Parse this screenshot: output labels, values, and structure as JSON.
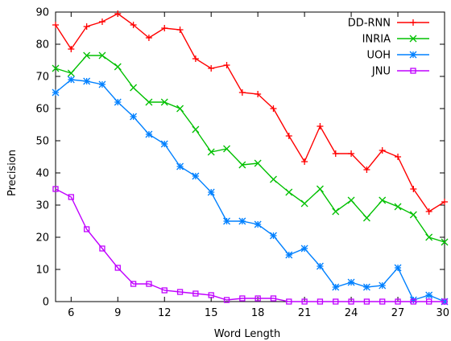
{
  "chart_data": {
    "type": "line",
    "xlabel": "Word Length",
    "ylabel": "Precision",
    "xlim": [
      5,
      30
    ],
    "ylim": [
      0,
      90
    ],
    "xticks": [
      6,
      9,
      12,
      15,
      18,
      21,
      24,
      27,
      30
    ],
    "yticks": [
      0,
      10,
      20,
      30,
      40,
      50,
      60,
      70,
      80,
      90
    ],
    "grid": false,
    "legend_position": "top-right",
    "x": [
      5,
      6,
      7,
      8,
      9,
      10,
      11,
      12,
      13,
      14,
      15,
      16,
      17,
      18,
      19,
      20,
      21,
      22,
      23,
      24,
      25,
      26,
      27,
      28,
      29,
      30
    ],
    "series": [
      {
        "name": "DD-RNN",
        "color": "#ff0000",
        "marker": "plus",
        "values": [
          86,
          78.5,
          85.5,
          87,
          89.5,
          86,
          82,
          85,
          84.5,
          75.5,
          72.5,
          73.5,
          65,
          64.5,
          60,
          51.5,
          43.5,
          54.5,
          46,
          46,
          41,
          47,
          45,
          35,
          28,
          31
        ]
      },
      {
        "name": "INRIA",
        "color": "#00c000",
        "marker": "cross",
        "values": [
          72.5,
          71,
          76.5,
          76.5,
          73,
          66.5,
          62,
          62,
          60,
          53.5,
          46.5,
          47.5,
          42.5,
          43,
          38,
          34,
          30.5,
          35,
          28,
          31.5,
          26,
          31.5,
          29.5,
          27,
          20,
          18.5
        ]
      },
      {
        "name": "UOH",
        "color": "#0080ff",
        "marker": "star",
        "values": [
          65,
          69,
          68.5,
          67.5,
          62,
          57.5,
          52,
          49,
          42,
          39,
          34,
          25,
          25,
          24,
          20.5,
          14.5,
          16.5,
          11,
          4.5,
          6,
          4.5,
          5,
          10.5,
          0.5,
          2,
          0
        ]
      },
      {
        "name": "JNU",
        "color": "#c000ff",
        "marker": "square",
        "values": [
          35,
          32.5,
          22.5,
          16.5,
          10.5,
          5.5,
          5.5,
          3.5,
          3,
          2.5,
          2,
          0.5,
          1,
          1,
          1,
          0,
          0,
          0,
          0,
          0,
          0,
          0,
          0,
          0,
          0,
          0
        ]
      }
    ]
  }
}
